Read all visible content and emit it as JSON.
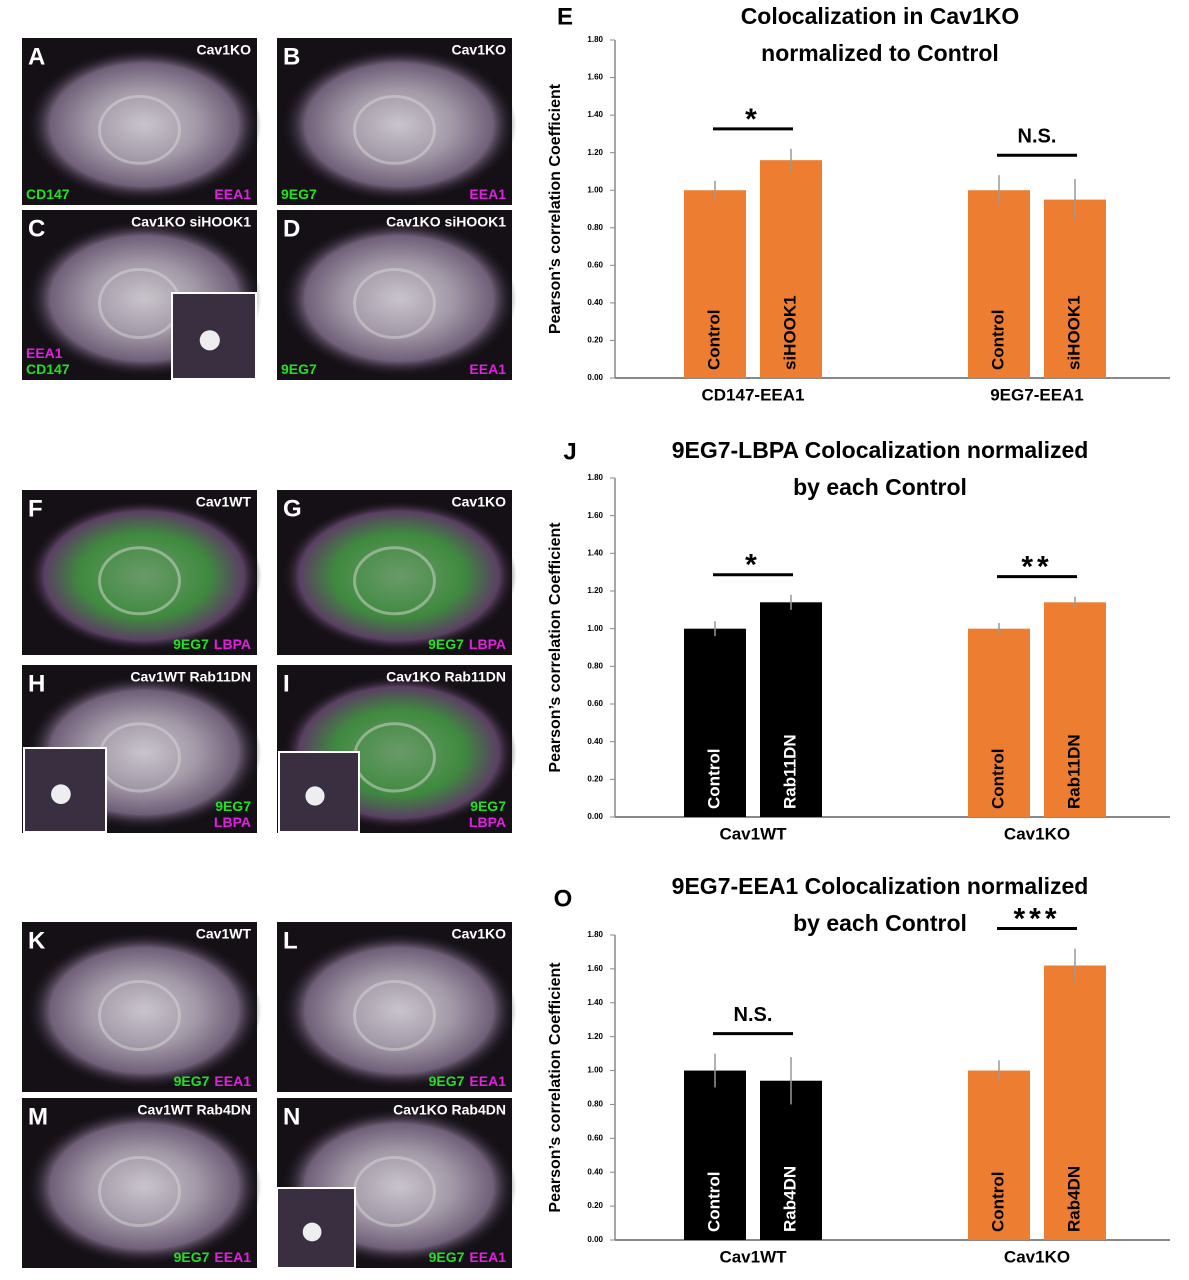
{
  "panels": [
    {
      "letter": "A",
      "condition": "Cav1KO",
      "labels": [
        {
          "text": "CD147",
          "color": "#22e022"
        },
        {
          "text": "EEA1",
          "color": "#e020e0"
        }
      ]
    },
    {
      "letter": "B",
      "condition": "Cav1KO",
      "labels": [
        {
          "text": "9EG7",
          "color": "#22e022"
        },
        {
          "text": "EEA1",
          "color": "#e020e0"
        }
      ]
    },
    {
      "letter": "C",
      "condition": "Cav1KO siHOOK1",
      "labels": [
        {
          "text": "EEA1",
          "color": "#e020e0"
        },
        {
          "text": "CD147",
          "color": "#22e022"
        }
      ]
    },
    {
      "letter": "D",
      "condition": "Cav1KO siHOOK1",
      "labels": [
        {
          "text": "9EG7",
          "color": "#22e022"
        },
        {
          "text": "EEA1",
          "color": "#e020e0"
        }
      ]
    },
    {
      "letter": "F",
      "condition": "Cav1WT",
      "labels": [
        {
          "text": "9EG7",
          "color": "#22e022"
        },
        {
          "text": "LBPA",
          "color": "#e020e0"
        }
      ]
    },
    {
      "letter": "G",
      "condition": "Cav1KO",
      "labels": [
        {
          "text": "9EG7",
          "color": "#22e022"
        },
        {
          "text": "LBPA",
          "color": "#e020e0"
        }
      ]
    },
    {
      "letter": "H",
      "condition": "Cav1WT Rab11DN",
      "labels": [
        {
          "text": "9EG7",
          "color": "#22e022"
        },
        {
          "text": "LBPA",
          "color": "#e020e0"
        }
      ]
    },
    {
      "letter": "I",
      "condition": "Cav1KO Rab11DN",
      "labels": [
        {
          "text": "9EG7",
          "color": "#22e022"
        },
        {
          "text": "LBPA",
          "color": "#e020e0"
        }
      ]
    },
    {
      "letter": "K",
      "condition": "Cav1WT",
      "labels": [
        {
          "text": "9EG7",
          "color": "#22e022"
        },
        {
          "text": "EEA1",
          "color": "#e020e0"
        }
      ]
    },
    {
      "letter": "L",
      "condition": "Cav1KO",
      "labels": [
        {
          "text": "9EG7",
          "color": "#22e022"
        },
        {
          "text": "EEA1",
          "color": "#e020e0"
        }
      ]
    },
    {
      "letter": "M",
      "condition": "Cav1WT Rab4DN",
      "labels": [
        {
          "text": "9EG7",
          "color": "#22e022"
        },
        {
          "text": "EEA1",
          "color": "#e020e0"
        }
      ]
    },
    {
      "letter": "N",
      "condition": "Cav1KO Rab4DN",
      "labels": [
        {
          "text": "9EG7",
          "color": "#22e022"
        },
        {
          "text": "EEA1",
          "color": "#e020e0"
        }
      ]
    }
  ],
  "chart_data": [
    {
      "type": "bar",
      "letter": "E",
      "title": [
        "Colocalization in Cav1KO",
        "normalized to Control"
      ],
      "ylabel": "Pearson’s correlation Coefficient",
      "ylim": [
        0,
        1.8
      ],
      "yticks": [
        {
          "value": 0,
          "label": "0.00"
        },
        {
          "value": 0.2,
          "label": "0.20"
        },
        {
          "value": 0.4,
          "label": "0.40"
        },
        {
          "value": 0.6,
          "label": "0.60"
        },
        {
          "value": 0.8,
          "label": "0.80"
        },
        {
          "value": 1,
          "label": "1.00"
        },
        {
          "value": 1.2,
          "label": "1.20"
        },
        {
          "value": 1.4,
          "label": "1.40"
        },
        {
          "value": 1.6,
          "label": "1.60"
        },
        {
          "value": 1.8,
          "label": "1.80"
        }
      ],
      "groups": [
        {
          "name": "CD147-EEA1",
          "color": "#ed7d31",
          "bars": [
            "Control",
            "siHOOK1"
          ],
          "values": [
            1.0,
            1.16
          ],
          "errors": [
            0.05,
            0.06
          ],
          "significance": "*"
        },
        {
          "name": "9EG7-EEA1",
          "color": "#ed7d31",
          "bars": [
            "Control",
            "siHOOK1"
          ],
          "values": [
            1.0,
            0.95
          ],
          "errors": [
            0.08,
            0.11
          ],
          "significance": "N.S."
        }
      ]
    },
    {
      "type": "bar",
      "letter": "J",
      "title": [
        "9EG7-LBPA Colocalization normalized",
        "by each Control"
      ],
      "ylabel": "Pearson’s correlation Coefficient",
      "ylim": [
        0,
        1.8
      ],
      "yticks": [
        {
          "value": 0,
          "label": "0.00"
        },
        {
          "value": 0.2,
          "label": "0.20"
        },
        {
          "value": 0.4,
          "label": "0.40"
        },
        {
          "value": 0.6,
          "label": "0.60"
        },
        {
          "value": 0.8,
          "label": "0.80"
        },
        {
          "value": 1,
          "label": "1.00"
        },
        {
          "value": 1.2,
          "label": "1.20"
        },
        {
          "value": 1.4,
          "label": "1.40"
        },
        {
          "value": 1.6,
          "label": "1.60"
        },
        {
          "value": 1.8,
          "label": "1.80"
        }
      ],
      "groups": [
        {
          "name": "Cav1WT",
          "color": "#000000",
          "bars": [
            "Control",
            "Rab11DN"
          ],
          "values": [
            1.0,
            1.14
          ],
          "errors": [
            0.04,
            0.04
          ],
          "significance": "*"
        },
        {
          "name": "Cav1KO",
          "color": "#ed7d31",
          "bars": [
            "Control",
            "Rab11DN"
          ],
          "values": [
            1.0,
            1.14
          ],
          "errors": [
            0.03,
            0.03
          ],
          "significance": "**"
        }
      ]
    },
    {
      "type": "bar",
      "letter": "O",
      "title": [
        "9EG7-EEA1 Colocalization normalized",
        "by each Control"
      ],
      "ylabel": "Pearson’s correlation Coefficient",
      "ylim": [
        0,
        1.8
      ],
      "yticks": [
        {
          "value": 0,
          "label": "0.00"
        },
        {
          "value": 0.2,
          "label": "0.20"
        },
        {
          "value": 0.4,
          "label": "0.40"
        },
        {
          "value": 0.6,
          "label": "0.60"
        },
        {
          "value": 0.8,
          "label": "0.80"
        },
        {
          "value": 1,
          "label": "1.00"
        },
        {
          "value": 1.2,
          "label": "1.20"
        },
        {
          "value": 1.4,
          "label": "1.40"
        },
        {
          "value": 1.6,
          "label": "1.60"
        },
        {
          "value": 1.8,
          "label": "1.80"
        }
      ],
      "groups": [
        {
          "name": "Cav1WT",
          "color": "#000000",
          "bars": [
            "Control",
            "Rab4DN"
          ],
          "values": [
            1.0,
            0.94
          ],
          "errors": [
            0.1,
            0.14
          ],
          "significance": "N.S."
        },
        {
          "name": "Cav1KO",
          "color": "#ed7d31",
          "bars": [
            "Control",
            "Rab4DN"
          ],
          "values": [
            1.0,
            1.62
          ],
          "errors": [
            0.06,
            0.1
          ],
          "significance": "***"
        }
      ]
    }
  ]
}
